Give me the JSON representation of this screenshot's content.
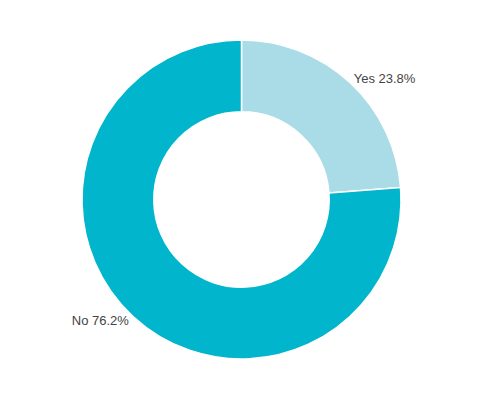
{
  "chart_data": {
    "type": "pie",
    "categories": [
      "Yes",
      "No"
    ],
    "values": [
      23.8,
      76.2
    ],
    "value_labels": [
      "Yes 23.8%",
      "No 76.2%"
    ],
    "colors": [
      "#aadce8",
      "#00b5cc"
    ],
    "data_labels": true
  }
}
